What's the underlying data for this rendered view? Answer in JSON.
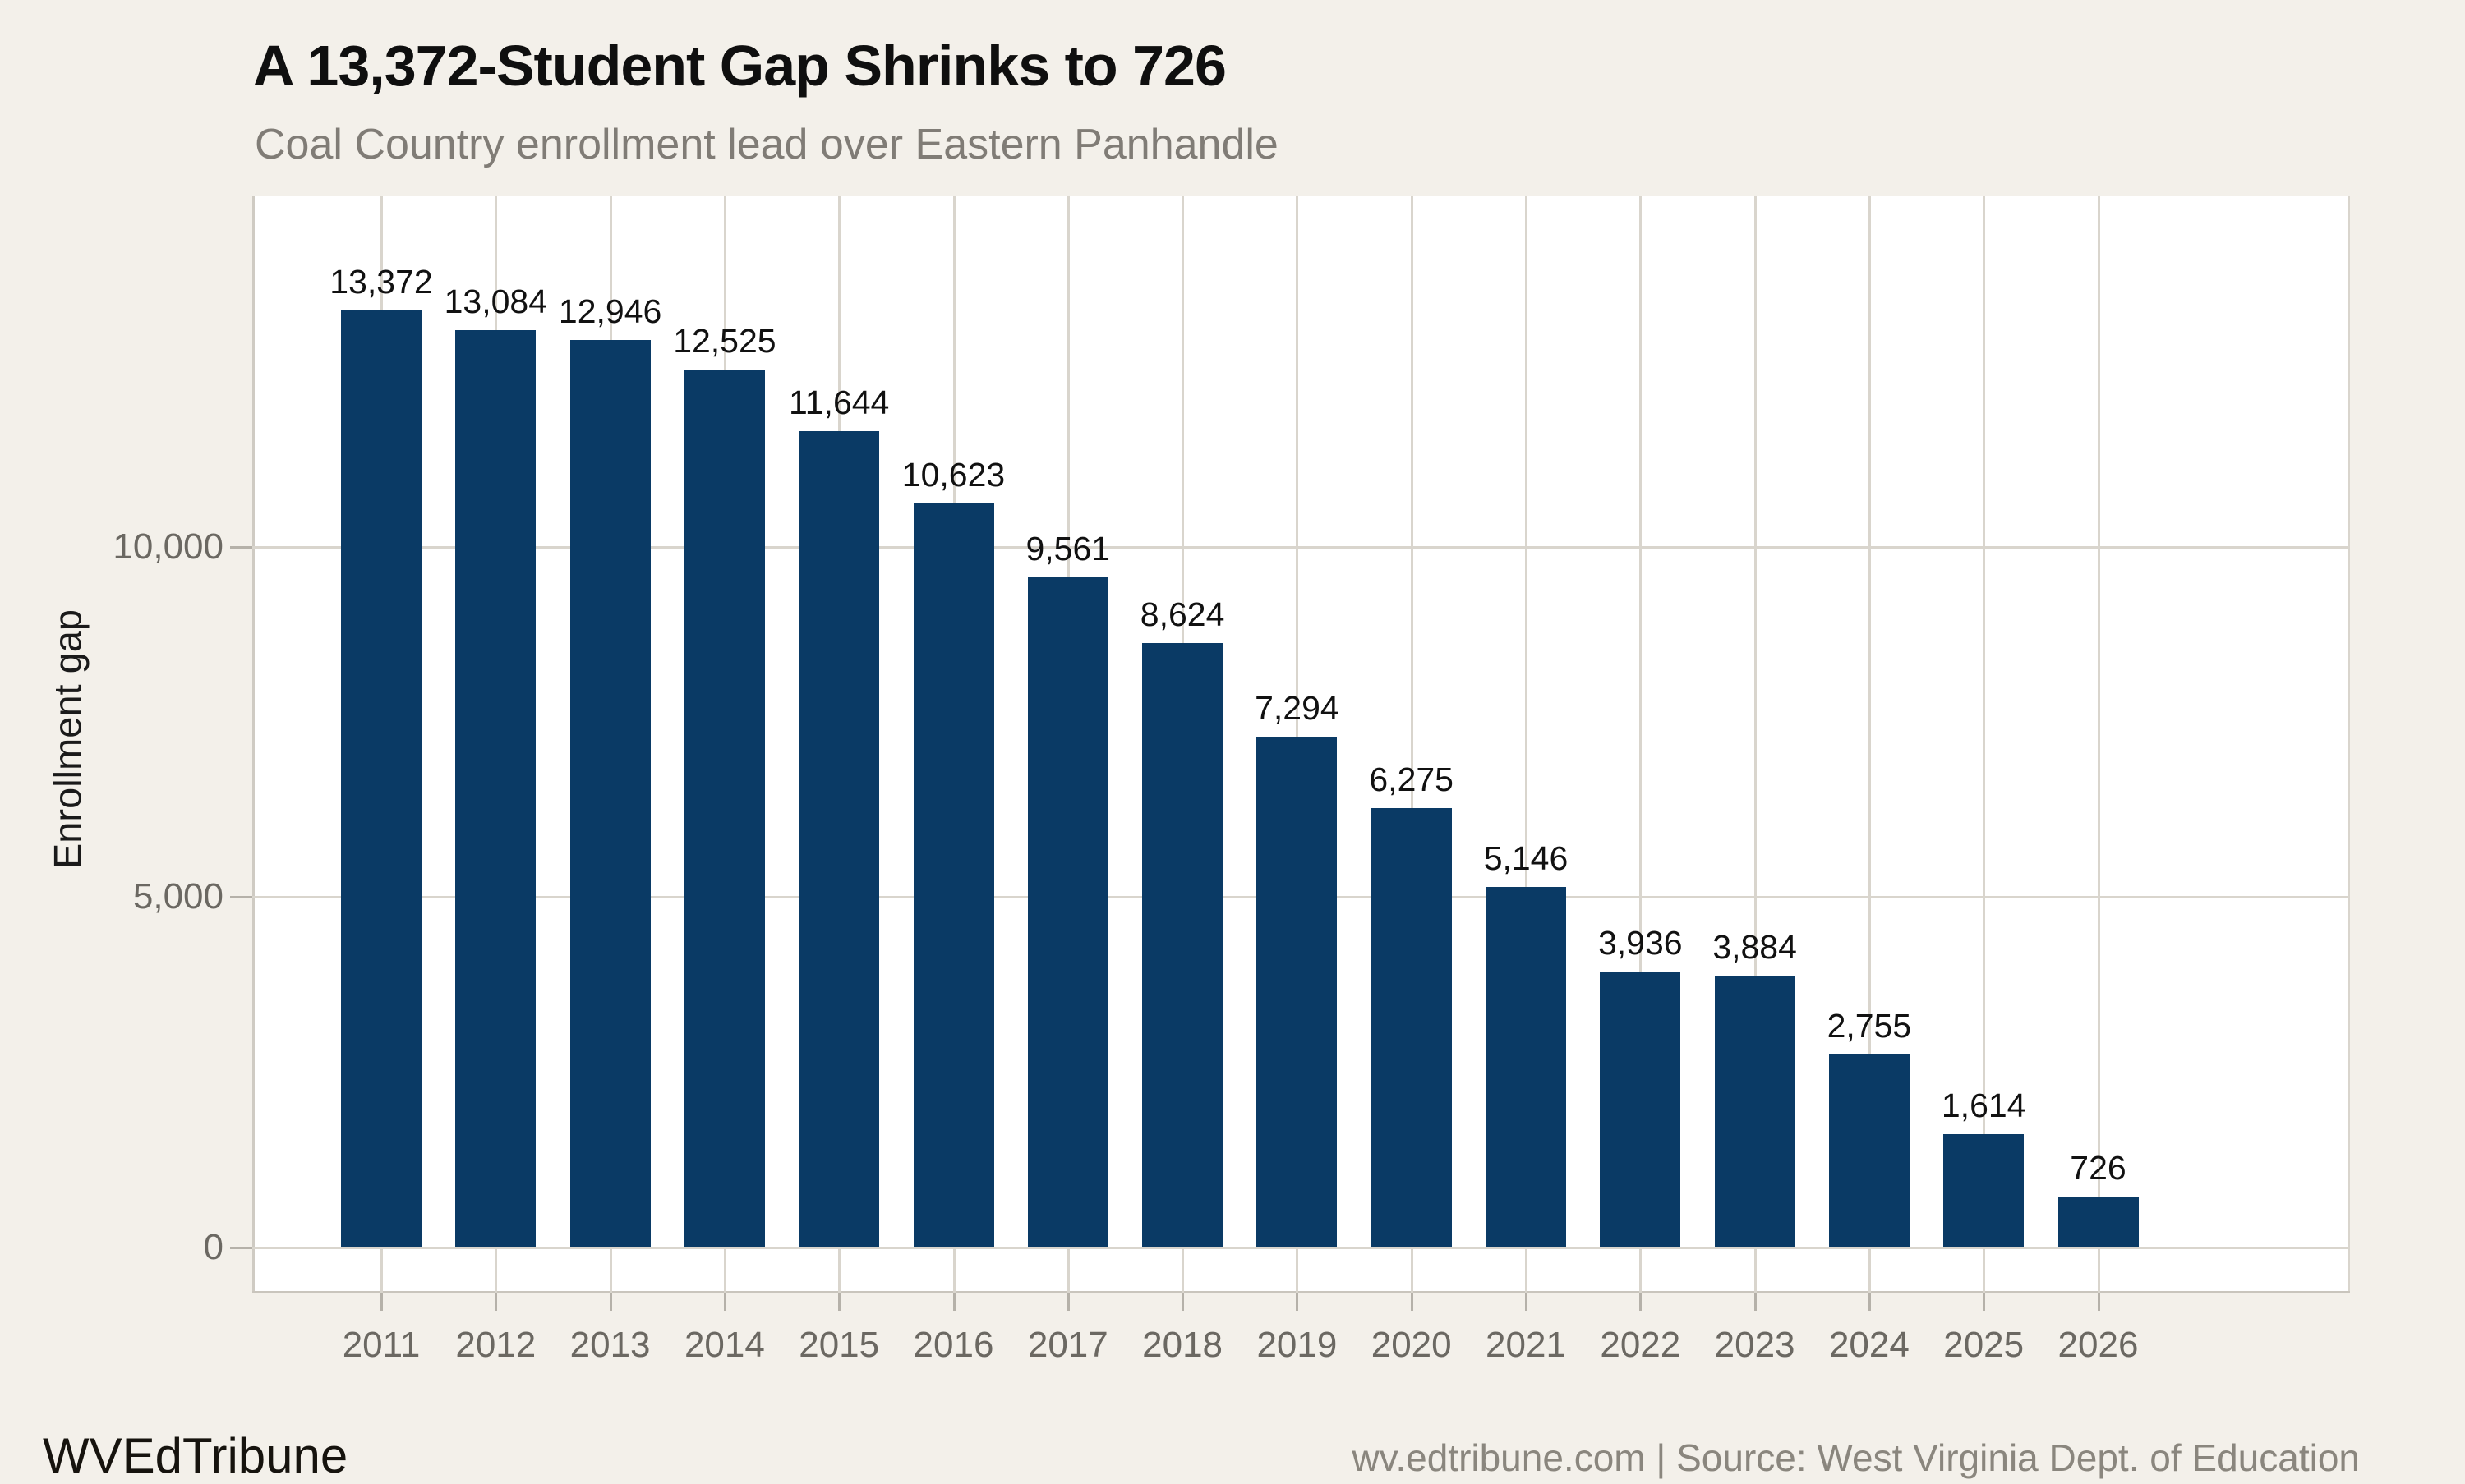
{
  "header": {
    "title": "A 13,372-Student Gap Shrinks to 726",
    "subtitle": "Coal Country enrollment lead over Eastern Panhandle"
  },
  "chart_data": {
    "type": "bar",
    "title": "A 13,372-Student Gap Shrinks to 726",
    "subtitle": "Coal Country enrollment lead over Eastern Panhandle",
    "categories": [
      "2011",
      "2012",
      "2013",
      "2014",
      "2015",
      "2016",
      "2017",
      "2018",
      "2019",
      "2020",
      "2021",
      "2022",
      "2023",
      "2024",
      "2025",
      "2026"
    ],
    "values": [
      13372,
      13084,
      12946,
      12525,
      11644,
      10623,
      9561,
      8624,
      7294,
      6275,
      5146,
      3936,
      3884,
      2755,
      1614,
      726
    ],
    "value_labels": [
      "13,372",
      "13,084",
      "12,946",
      "12,525",
      "11,644",
      "10,623",
      "9,561",
      "8,624",
      "7,294",
      "6,275",
      "5,146",
      "3,936",
      "3,884",
      "2,755",
      "1,614",
      "726"
    ],
    "xlabel": "",
    "ylabel": "Enrollment gap",
    "ylim": [
      0,
      15000
    ],
    "yticks": [
      {
        "value": 0,
        "label": "0"
      },
      {
        "value": 5000,
        "label": "5,000"
      },
      {
        "value": 10000,
        "label": "10,000"
      }
    ],
    "grid": true,
    "legend": false,
    "bar_color": "#0a3a65"
  },
  "colors": {
    "background": "#f3f0ea",
    "panel": "#ffffff",
    "gridline": "#d9d5cd",
    "bar": "#0a3a65",
    "title_text": "#0f0f0f",
    "subtitle_text": "#807c76",
    "axis_text": "#6b6862",
    "source_text": "#8a867e"
  },
  "footer": {
    "brand": "WVEdTribune",
    "source": "wv.edtribune.com | Source: West Virginia Dept. of Education"
  }
}
